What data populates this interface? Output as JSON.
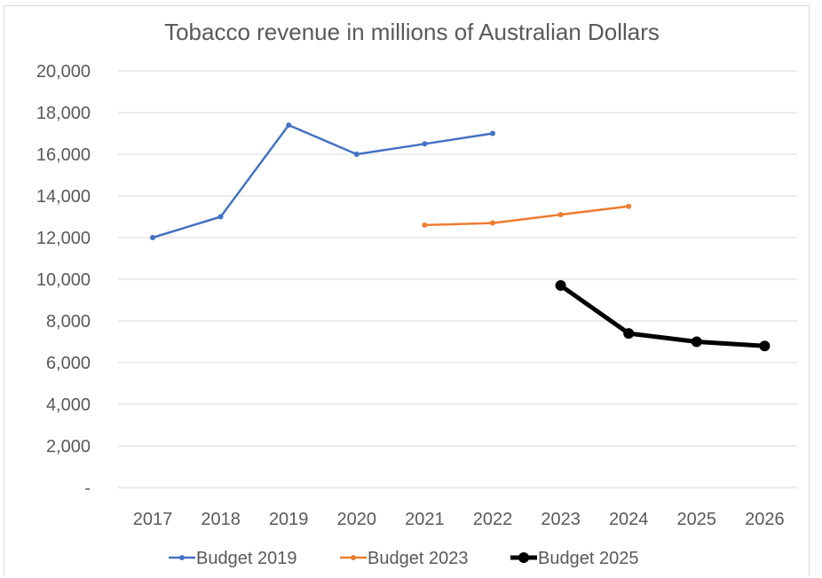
{
  "chart_data": {
    "type": "line",
    "title": "Tobacco revenue in millions of Australian Dollars",
    "xlabel": "",
    "ylabel": "",
    "categories": [
      "2017",
      "2018",
      "2019",
      "2020",
      "2021",
      "2022",
      "2023",
      "2024",
      "2025",
      "2026"
    ],
    "ylim": [
      0,
      20000
    ],
    "yticks": [
      {
        "value": 0,
        "label": "-"
      },
      {
        "value": 2000,
        "label": "2,000"
      },
      {
        "value": 4000,
        "label": "4,000"
      },
      {
        "value": 6000,
        "label": "6,000"
      },
      {
        "value": 8000,
        "label": "8,000"
      },
      {
        "value": 10000,
        "label": "10,000"
      },
      {
        "value": 12000,
        "label": "12,000"
      },
      {
        "value": 14000,
        "label": "14,000"
      },
      {
        "value": 16000,
        "label": "16,000"
      },
      {
        "value": 18000,
        "label": "18,000"
      },
      {
        "value": 20000,
        "label": "20,000"
      }
    ],
    "grid": true,
    "legend_position": "bottom",
    "series": [
      {
        "name": "Budget 2019",
        "color": "#4472c4",
        "style": "thin",
        "values": [
          12000,
          13000,
          17400,
          16000,
          16500,
          17000,
          null,
          null,
          null,
          null
        ]
      },
      {
        "name": "Budget 2023",
        "color": "#ed7d31",
        "style": "thin",
        "values": [
          null,
          null,
          null,
          null,
          12600,
          12700,
          13100,
          13500,
          null,
          null
        ]
      },
      {
        "name": "Budget 2025",
        "color": "#000000",
        "style": "thick",
        "values": [
          null,
          null,
          null,
          null,
          null,
          null,
          9700,
          7400,
          7000,
          6800
        ]
      }
    ]
  }
}
